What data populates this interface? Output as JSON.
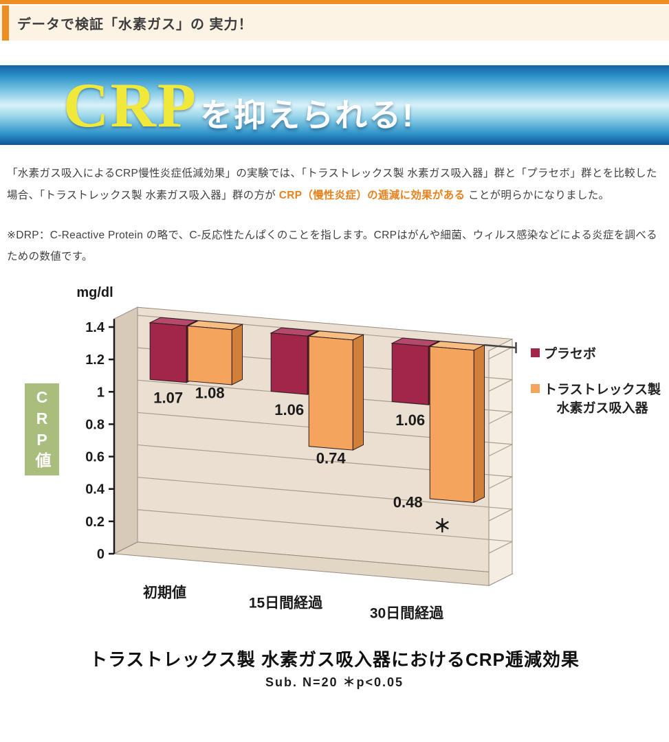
{
  "header": {
    "title": "データで検証「水素ガス」の 実力！"
  },
  "banner": {
    "crp": "CRP",
    "rest": "を抑えられる!"
  },
  "intro": {
    "part1": "「水素ガス吸入によるCRP慢性炎症低減効果」の実験では、「トラストレックス製 水素ガス吸入器」群と「プラセボ」群とを比較した場合、「トラストレックス製 水素ガス吸入器」群の方が",
    "highlight": " CRP（慢性炎症）の逓減に効果がある ",
    "part2": "ことが明らかになりました。"
  },
  "note": "※DRP：C-Reactive Protein の略で、C-反応性たんぱくのことを指します。CRPはがんや細菌、ウィルス感染などによる炎症を調べるための数値です。",
  "chart_data": {
    "type": "bar",
    "style": "3d-columns-hanging-from-top",
    "unit": "mg/dl",
    "axis_box_label": "CRP値",
    "categories": [
      "初期値",
      "15日間経過",
      "30日間経過"
    ],
    "series": [
      {
        "name": "プラセボ",
        "color": "#a02749",
        "top": "#b4496b",
        "side": "#701b33",
        "values": [
          1.07,
          1.06,
          1.06
        ]
      },
      {
        "name": "トラストレックス製\n水素ガス吸入器",
        "color": "#f4a45c",
        "top": "#f8bd80",
        "side": "#d08038",
        "values": [
          1.08,
          0.74,
          0.48
        ]
      }
    ],
    "yticks": [
      "0",
      "0.2",
      "0.4",
      "0.6",
      "0.8",
      "1",
      "1.2",
      "1.4"
    ],
    "ylim": [
      0,
      1.4
    ],
    "significance": {
      "symbol": "＊",
      "category_index": 2,
      "series_index": 1
    },
    "title": "トラストレックス製 水素ガス吸入器におけるCRP逓減効果",
    "subtitle": "Sub.  N=20  ＊p<0.05"
  }
}
